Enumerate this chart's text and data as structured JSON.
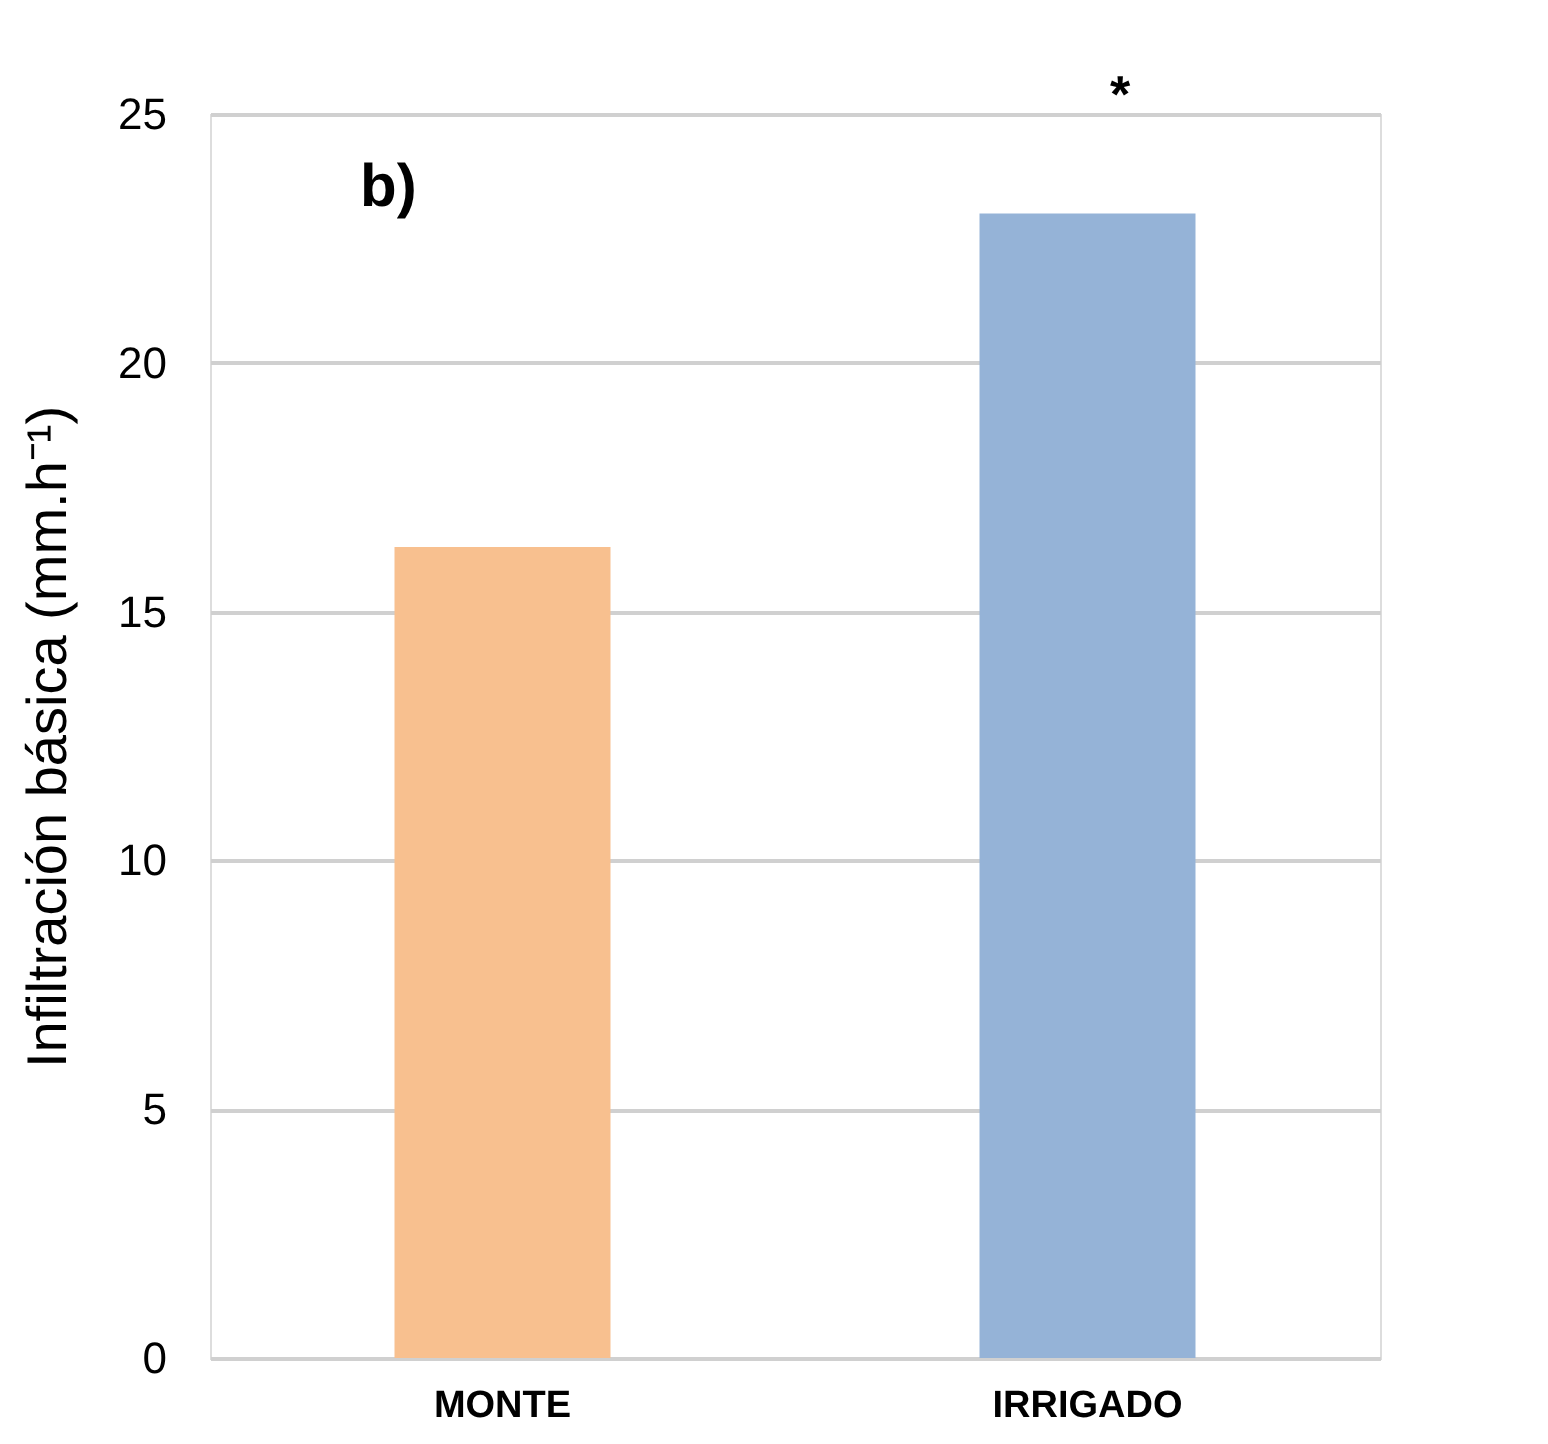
{
  "chart_data": {
    "type": "bar",
    "ylabel": "Infiltración básica (mm.h⁻¹)",
    "categories": [
      "MONTE",
      "IRRIGADO"
    ],
    "values": [
      16.3,
      23.0
    ],
    "colors": [
      "#f8c08f",
      "#95b3d7"
    ],
    "ylim": [
      0,
      25
    ],
    "yticks": [
      0,
      5,
      10,
      15,
      20,
      25
    ],
    "grid": "y",
    "annotations": [
      "b)",
      "*"
    ]
  }
}
